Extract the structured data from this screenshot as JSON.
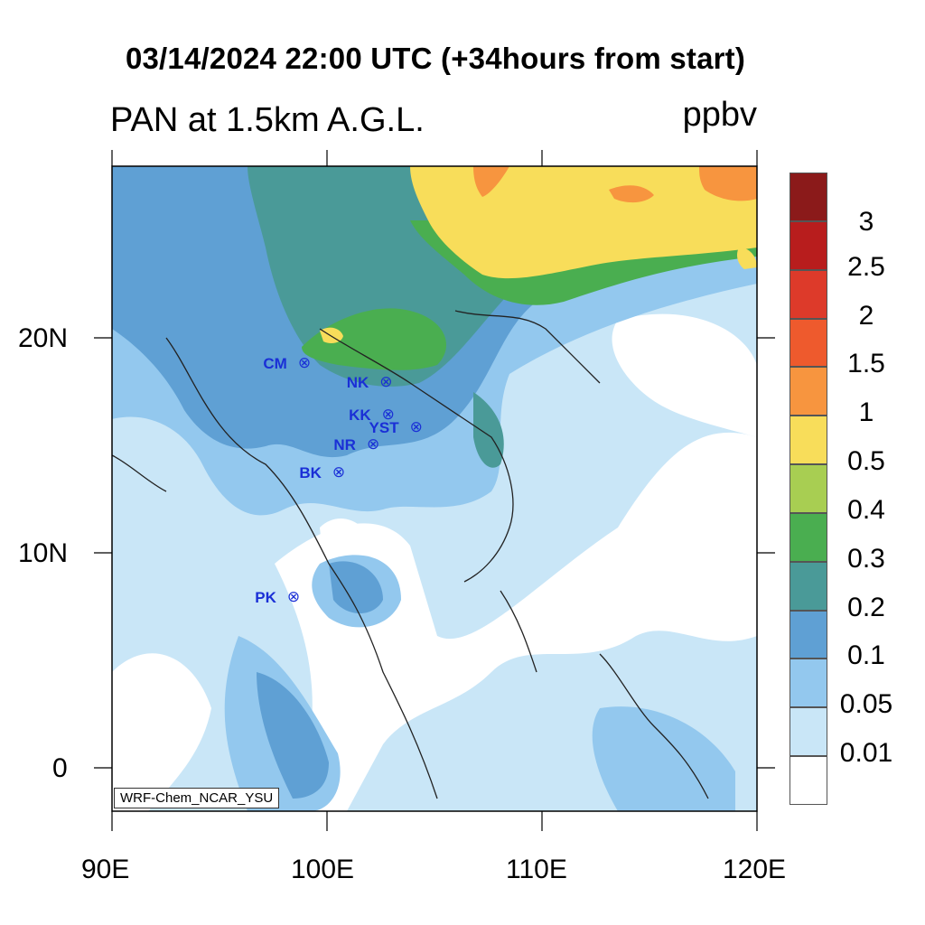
{
  "header": {
    "title": "03/14/2024 22:00 UTC (+34hours from start)",
    "subtitle": "PAN at 1.5km A.G.L.",
    "units": "ppbv"
  },
  "axes": {
    "x_ticks": [
      "90E",
      "100E",
      "110E",
      "120E"
    ],
    "y_ticks": [
      "20N",
      "10N",
      "0"
    ]
  },
  "map_extent": {
    "lon": [
      90,
      120
    ],
    "lat": [
      -2,
      28
    ]
  },
  "stations": [
    {
      "id": "CM",
      "lon": 98.9,
      "lat": 18.8
    },
    {
      "id": "NK",
      "lon": 102.7,
      "lat": 17.9
    },
    {
      "id": "KK",
      "lon": 102.8,
      "lat": 16.4
    },
    {
      "id": "YST",
      "lon": 104.1,
      "lat": 15.8
    },
    {
      "id": "NR",
      "lon": 102.1,
      "lat": 15.0
    },
    {
      "id": "BK",
      "lon": 100.5,
      "lat": 13.7
    },
    {
      "id": "PK",
      "lon": 98.4,
      "lat": 7.9
    }
  ],
  "colorbar": {
    "labels": [
      "3",
      "2.5",
      "2",
      "1.5",
      "1",
      "0.5",
      "0.4",
      "0.3",
      "0.2",
      "0.1",
      "0.05",
      "0.01"
    ],
    "colors": [
      "#8b1a1a",
      "#b81d1d",
      "#dd3a2a",
      "#ee5a2d",
      "#f7953f",
      "#f8dd5a",
      "#a8ce52",
      "#4aae50",
      "#4a9a98",
      "#5fa0d4",
      "#93c8ee",
      "#c9e6f7",
      "#ffffff"
    ]
  },
  "credit": "WRF-Chem_NCAR_YSU"
}
